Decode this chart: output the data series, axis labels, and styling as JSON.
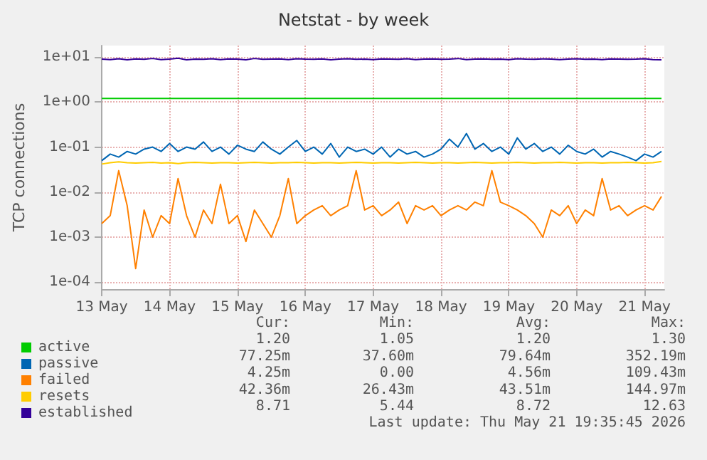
{
  "chart_data": {
    "type": "line",
    "title": "Netstat - by week",
    "ylabel": "TCP connections",
    "log": "y",
    "grid": true,
    "legend": "bottom",
    "marker": "none",
    "line_style": "solid",
    "ylim": [
      7e-05,
      18
    ],
    "yticks": [
      {
        "value": 0.0001,
        "label": "1e-04"
      },
      {
        "value": 0.001,
        "label": "1e-03"
      },
      {
        "value": 0.01,
        "label": "1e-02"
      },
      {
        "value": 0.1,
        "label": "1e-01"
      },
      {
        "value": 1,
        "label": "1e+00"
      },
      {
        "value": 10,
        "label": "1e+01"
      }
    ],
    "xlim": [
      "2026-05-13T00:00",
      "2026-05-21T07:00"
    ],
    "xticks": [
      {
        "value": "2026-05-13",
        "label": "13 May"
      },
      {
        "value": "2026-05-14",
        "label": "14 May"
      },
      {
        "value": "2026-05-15",
        "label": "15 May"
      },
      {
        "value": "2026-05-16",
        "label": "16 May"
      },
      {
        "value": "2026-05-17",
        "label": "17 May"
      },
      {
        "value": "2026-05-18",
        "label": "18 May"
      },
      {
        "value": "2026-05-19",
        "label": "19 May"
      },
      {
        "value": "2026-05-20",
        "label": "20 May"
      },
      {
        "value": "2026-05-21",
        "label": "21 May"
      }
    ],
    "x": [
      "2026-05-13T00:00",
      "2026-05-13T03:00",
      "2026-05-13T06:00",
      "2026-05-13T09:00",
      "2026-05-13T12:00",
      "2026-05-13T15:00",
      "2026-05-13T18:00",
      "2026-05-13T21:00",
      "2026-05-14T00:00",
      "2026-05-14T03:00",
      "2026-05-14T06:00",
      "2026-05-14T09:00",
      "2026-05-14T12:00",
      "2026-05-14T15:00",
      "2026-05-14T18:00",
      "2026-05-14T21:00",
      "2026-05-15T00:00",
      "2026-05-15T03:00",
      "2026-05-15T06:00",
      "2026-05-15T09:00",
      "2026-05-15T12:00",
      "2026-05-15T15:00",
      "2026-05-15T18:00",
      "2026-05-15T21:00",
      "2026-05-16T00:00",
      "2026-05-16T03:00",
      "2026-05-16T06:00",
      "2026-05-16T09:00",
      "2026-05-16T12:00",
      "2026-05-16T15:00",
      "2026-05-16T18:00",
      "2026-05-16T21:00",
      "2026-05-17T00:00",
      "2026-05-17T03:00",
      "2026-05-17T06:00",
      "2026-05-17T09:00",
      "2026-05-17T12:00",
      "2026-05-17T15:00",
      "2026-05-17T18:00",
      "2026-05-17T21:00",
      "2026-05-18T00:00",
      "2026-05-18T03:00",
      "2026-05-18T06:00",
      "2026-05-18T09:00",
      "2026-05-18T12:00",
      "2026-05-18T15:00",
      "2026-05-18T18:00",
      "2026-05-18T21:00",
      "2026-05-19T00:00",
      "2026-05-19T03:00",
      "2026-05-19T06:00",
      "2026-05-19T09:00",
      "2026-05-19T12:00",
      "2026-05-19T15:00",
      "2026-05-19T18:00",
      "2026-05-19T21:00",
      "2026-05-20T00:00",
      "2026-05-20T03:00",
      "2026-05-20T06:00",
      "2026-05-20T09:00",
      "2026-05-20T12:00",
      "2026-05-20T15:00",
      "2026-05-20T18:00",
      "2026-05-20T21:00",
      "2026-05-21T00:00",
      "2026-05-21T03:00",
      "2026-05-21T06:00"
    ],
    "series": [
      {
        "name": "active",
        "color": "#00cc00",
        "values": [
          1.2,
          1.2,
          1.2,
          1.2,
          1.2,
          1.2,
          1.2,
          1.2,
          1.2,
          1.2,
          1.2,
          1.2,
          1.2,
          1.2,
          1.2,
          1.2,
          1.2,
          1.2,
          1.2,
          1.2,
          1.2,
          1.2,
          1.2,
          1.2,
          1.2,
          1.2,
          1.2,
          1.2,
          1.2,
          1.2,
          1.2,
          1.2,
          1.2,
          1.2,
          1.2,
          1.2,
          1.2,
          1.2,
          1.2,
          1.2,
          1.2,
          1.2,
          1.2,
          1.2,
          1.2,
          1.2,
          1.2,
          1.2,
          1.2,
          1.2,
          1.2,
          1.2,
          1.2,
          1.2,
          1.2,
          1.2,
          1.2,
          1.2,
          1.2,
          1.2,
          1.2,
          1.2,
          1.2,
          1.2,
          1.2,
          1.2,
          1.2
        ]
      },
      {
        "name": "passive",
        "color": "#0066b3",
        "values": [
          0.05,
          0.07,
          0.06,
          0.08,
          0.07,
          0.09,
          0.1,
          0.08,
          0.12,
          0.08,
          0.1,
          0.09,
          0.13,
          0.08,
          0.1,
          0.07,
          0.11,
          0.09,
          0.08,
          0.13,
          0.09,
          0.07,
          0.1,
          0.14,
          0.08,
          0.1,
          0.07,
          0.12,
          0.06,
          0.1,
          0.08,
          0.09,
          0.07,
          0.1,
          0.06,
          0.09,
          0.07,
          0.08,
          0.06,
          0.07,
          0.09,
          0.15,
          0.1,
          0.2,
          0.09,
          0.12,
          0.08,
          0.1,
          0.07,
          0.16,
          0.09,
          0.12,
          0.08,
          0.1,
          0.07,
          0.11,
          0.08,
          0.07,
          0.09,
          0.06,
          0.08,
          0.07,
          0.06,
          0.05,
          0.07,
          0.06,
          0.08
        ]
      },
      {
        "name": "failed",
        "color": "#ff8000",
        "values": [
          0.002,
          0.003,
          0.03,
          0.005,
          0.0002,
          0.004,
          0.001,
          0.003,
          0.002,
          0.02,
          0.003,
          0.001,
          0.004,
          0.002,
          0.015,
          0.002,
          0.003,
          0.0008,
          0.004,
          0.002,
          0.001,
          0.003,
          0.02,
          0.002,
          0.003,
          0.004,
          0.005,
          0.003,
          0.004,
          0.005,
          0.03,
          0.004,
          0.005,
          0.003,
          0.004,
          0.006,
          0.002,
          0.005,
          0.004,
          0.005,
          0.003,
          0.004,
          0.005,
          0.004,
          0.006,
          0.005,
          0.03,
          0.006,
          0.005,
          0.004,
          0.003,
          0.002,
          0.001,
          0.004,
          0.003,
          0.005,
          0.002,
          0.004,
          0.003,
          0.02,
          0.004,
          0.005,
          0.003,
          0.004,
          0.005,
          0.004,
          0.008
        ]
      },
      {
        "name": "resets",
        "color": "#ffcc00",
        "values": [
          0.042,
          0.045,
          0.047,
          0.045,
          0.044,
          0.045,
          0.046,
          0.044,
          0.045,
          0.043,
          0.045,
          0.046,
          0.045,
          0.044,
          0.045,
          0.045,
          0.044,
          0.045,
          0.046,
          0.045,
          0.044,
          0.045,
          0.045,
          0.046,
          0.045,
          0.044,
          0.045,
          0.045,
          0.044,
          0.045,
          0.046,
          0.045,
          0.044,
          0.045,
          0.045,
          0.044,
          0.045,
          0.046,
          0.045,
          0.044,
          0.045,
          0.045,
          0.044,
          0.045,
          0.046,
          0.045,
          0.044,
          0.045,
          0.045,
          0.046,
          0.045,
          0.044,
          0.045,
          0.045,
          0.046,
          0.045,
          0.044,
          0.045,
          0.045,
          0.044,
          0.045,
          0.045,
          0.046,
          0.045,
          0.044,
          0.045,
          0.048
        ]
      },
      {
        "name": "established",
        "color": "#330099",
        "values": [
          9,
          8.8,
          9.2,
          8.7,
          9.1,
          8.9,
          9.3,
          8.8,
          9,
          9.4,
          8.7,
          9,
          8.9,
          9.2,
          8.8,
          9.1,
          9,
          8.7,
          9.3,
          8.9,
          9,
          9.1,
          8.8,
          9.2,
          9,
          8.9,
          9.1,
          8.7,
          9,
          9.2,
          8.9,
          9,
          8.8,
          9.1,
          9,
          8.9,
          9.2,
          8.8,
          9,
          9.1,
          8.9,
          9,
          9.3,
          8.8,
          9,
          9.1,
          8.9,
          9,
          8.8,
          9.2,
          9,
          8.9,
          9.1,
          9,
          8.8,
          9,
          9.2,
          8.9,
          9,
          8.8,
          9.1,
          9,
          8.9,
          9,
          9.2,
          8.8,
          8.71
        ]
      }
    ],
    "annotations": [
      "Cur:",
      "Min:",
      "Avg:",
      "Max:",
      "1.20",
      "1.05",
      "1.20",
      "1.30",
      "77.25m",
      "37.60m",
      "79.64m",
      "352.19m",
      "4.25m",
      "0.00",
      "4.56m",
      "109.43m",
      "42.36m",
      "26.43m",
      "43.51m",
      "144.97m",
      "8.71",
      "5.44",
      "8.72",
      "12.63",
      "Last update: Thu May 21 19:35:45 2026"
    ]
  }
}
